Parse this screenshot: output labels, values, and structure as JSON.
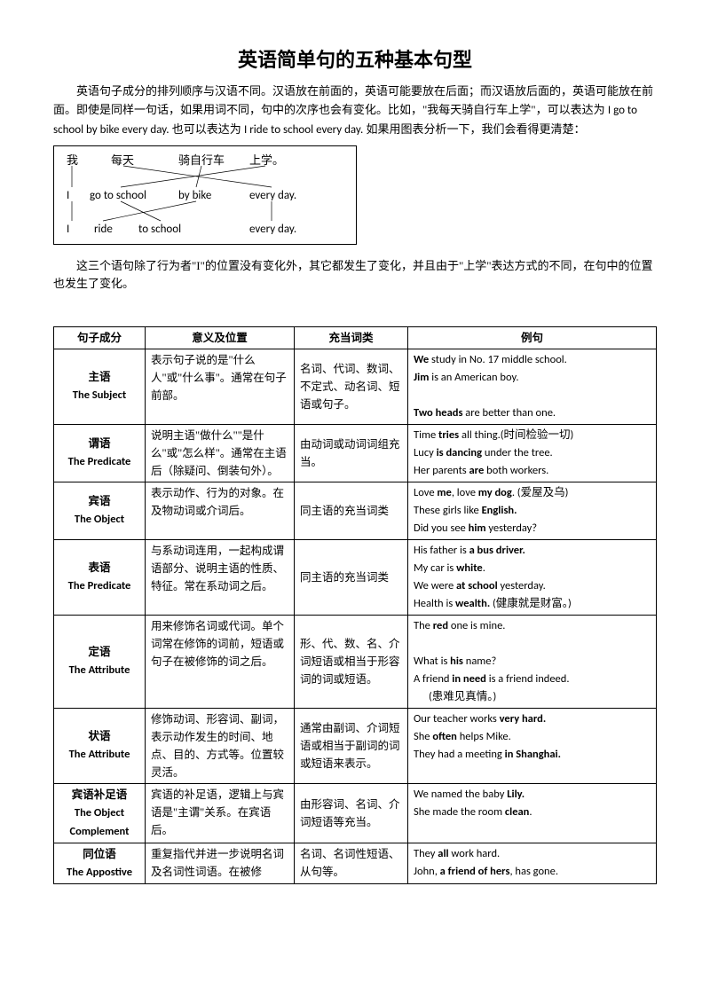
{
  "title": "英语简单句的五种基本句型",
  "intro": "英语句子成分的排列顺序与汉语不同。汉语放在前面的，英语可能要放在后面；而汉语放后面的，英语可能放在前面。即使是同样一句话，如果用词不同，句中的次序也会有变化。比如，\"我每天骑自行车上学\"，可以表达为 I go to school by bike every day.  也可以表达为  I ride to school every day.  如果用图表分析一下，我们会看得更清楚：",
  "diagram": {
    "row1": [
      "我",
      "每天",
      "骑自行车",
      "上学。"
    ],
    "row2": [
      "I",
      "go to school",
      "by bike",
      "every day."
    ],
    "row3": [
      "I",
      "ride",
      "to school",
      "every day."
    ]
  },
  "after_diagram": "这三个语句除了行为者\"I\"的位置没有变化外，其它都发生了变化，并且由于\"上学\"表达方式的不同，在句中的位置也发生了变化。",
  "table": {
    "headers": [
      "句子成分",
      "意义及位置",
      "充当词类",
      "例句"
    ],
    "rows": [
      {
        "c1": "主语\nThe Subject",
        "c2": "表示句子说的是\"什么人\"或\"什么事\"。通常在句子前部。",
        "c3": "名词、代词、数词、不定式、动名词、短语或句子。",
        "c4": "<b>We</b> study in No. 17 middle school.<br><b>Jim</b> is an American boy.<br><br><b>Two heads</b> are better than one."
      },
      {
        "c1": "谓语\nThe Predicate",
        "c2": "说明主语\"做什么\"\"是什么\"或\"怎么样\"。通常在主语后（除疑问、倒装句外）。",
        "c3": "由动词或动词词组充当。",
        "c4": "Time <b>tries</b> all thing.(时间检验一切)<br>Lucy <b>is dancing</b> under the tree.<br>Her parents <b>are</b> both workers."
      },
      {
        "c1": "宾语\nThe Object",
        "c2": "表示动作、行为的对象。在及物动词或介词后。",
        "c3": "同主语的充当词类",
        "c4": "Love <b>me</b>, love <b>my dog</b>. (爱屋及乌)<br>These girls like <b>English.</b><br>Did you see <b>him</b> yesterday?"
      },
      {
        "c1": "表语\nThe Predicate",
        "c2": "与系动词连用，一起构成谓语部分、说明主语的性质、特征。常在系动词之后。",
        "c3": "同主语的充当词类",
        "c4": "His father is <b>a bus driver.</b><br>My car is <b>white</b>.<br>We were <b>at school</b> yesterday.<br>Health is <b>wealth.</b> (健康就是财富。)"
      },
      {
        "c1": "定语\nThe Attribute",
        "c2": "用来修饰名词或代词。单个词常在修饰的词前，短语或句子在被修饰的词之后。",
        "c3": "形、代、数、名、介词短语或相当于形容词的词或短语。",
        "c4": "The <b>red</b> one is mine.<br><br>What is <b>his</b> name?<br>A friend <b>in need</b> is a friend indeed.<br>&nbsp;&nbsp;&nbsp;&nbsp;&nbsp;&nbsp;(患难见真情。)"
      },
      {
        "c1": "状语\nThe Attribute",
        "c2": "修饰动词、形容词、副词，表示动作发生的时间、地点、目的、方式等。位置较灵活。",
        "c3": "通常由副词、介词短语或相当于副词的词或短语来表示。",
        "c4": "Our teacher works <b>very hard.</b><br>She <b>often</b> helps Mike.<br>They had a meeting <b>in Shanghai.</b>"
      },
      {
        "c1": "宾语补足语\nThe Object\nComplement",
        "c2": "宾语的补足语，逻辑上与宾语是\"主谓\"关系。在宾语后。",
        "c3": "由形容词、名词、介词短语等充当。",
        "c4": "We named the baby <b>Lily.</b><br>She made the room <b>clean</b>."
      },
      {
        "c1": "同位语\nThe Appostive",
        "c2": "重复指代并进一步说明名词及名词性词语。在被修",
        "c3": "名词、名词性短语、从句等。",
        "c4": "They <b>all</b> work hard.<br>John, <b>a friend of hers</b>, has gone."
      }
    ]
  }
}
